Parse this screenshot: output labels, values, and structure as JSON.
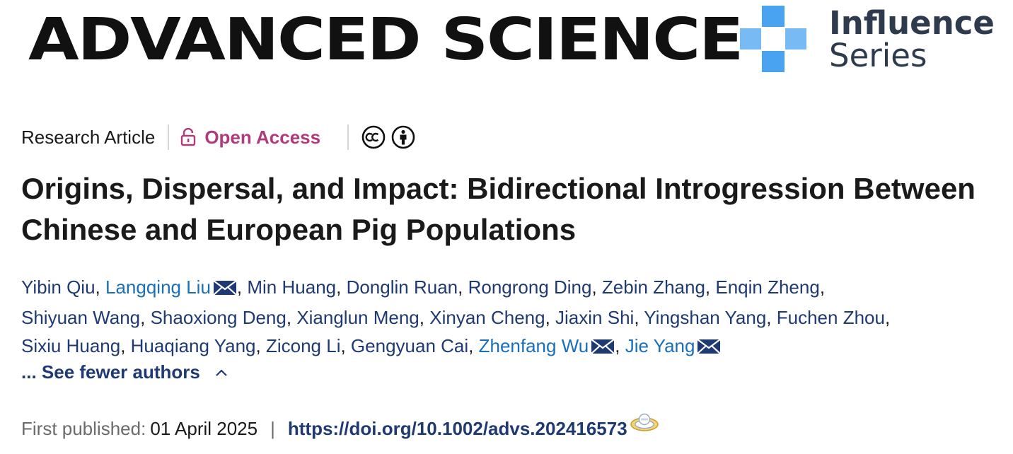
{
  "journal": {
    "name": "ADVANCED SCIENCE"
  },
  "series": {
    "line1": "Influence",
    "line2": "Series",
    "logo_color": "#4aa3f0"
  },
  "article": {
    "type": "Research Article",
    "access": "Open Access",
    "access_color": "#b03a7b",
    "license_icons": [
      "cc-icon",
      "by-icon"
    ],
    "title": "Origins, Dispersal, and Impact: Bidirectional Introgression Between Chinese and European Pig Populations"
  },
  "authors": {
    "lines": [
      [
        {
          "name": "Yibin Qiu",
          "corresponding": false
        },
        {
          "name": "Langqing Liu",
          "corresponding": true
        },
        {
          "name": "Min Huang",
          "corresponding": false
        },
        {
          "name": "Donglin Ruan",
          "corresponding": false
        },
        {
          "name": "Rongrong Ding",
          "corresponding": false
        },
        {
          "name": "Zebin Zhang",
          "corresponding": false
        },
        {
          "name": "Enqin Zheng",
          "corresponding": false
        }
      ],
      [
        {
          "name": "Shiyuan Wang",
          "corresponding": false
        },
        {
          "name": "Shaoxiong Deng",
          "corresponding": false
        },
        {
          "name": "Xianglun Meng",
          "corresponding": false
        },
        {
          "name": "Xinyan Cheng",
          "corresponding": false
        },
        {
          "name": "Jiaxin Shi",
          "corresponding": false
        },
        {
          "name": "Yingshan Yang",
          "corresponding": false
        },
        {
          "name": "Fuchen Zhou",
          "corresponding": false
        }
      ],
      [
        {
          "name": "Sixiu Huang",
          "corresponding": false
        },
        {
          "name": "Huaqiang Yang",
          "corresponding": false
        },
        {
          "name": "Zicong Li",
          "corresponding": false
        },
        {
          "name": "Gengyuan Cai",
          "corresponding": false
        },
        {
          "name": "Zhenfang Wu",
          "corresponding": true
        },
        {
          "name": "Jie Yang",
          "corresponding": true
        }
      ]
    ],
    "toggle_label": "... See fewer authors"
  },
  "publication": {
    "first_published_label": "First published:",
    "date": "01 April 2025",
    "separator": "|",
    "doi": "https://doi.org/10.1002/advs.202416573"
  }
}
